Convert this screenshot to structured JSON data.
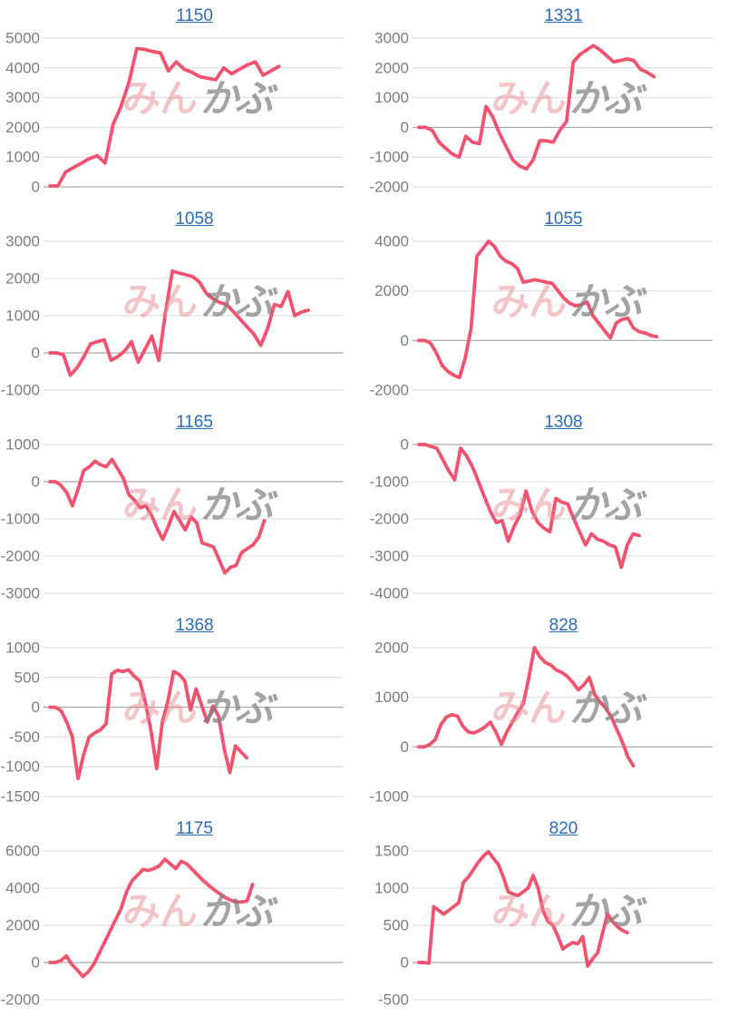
{
  "styles": {
    "line_color": "#f2526e",
    "grid_color": "#dadada",
    "baseline_color": "#9a9a9a",
    "tick_label_color": "#7d7d7d",
    "title_color": "#2a6cbf",
    "watermark_pink": "rgba(231,139,148,0.50)",
    "watermark_gray": "rgba(128,128,128,0.72)",
    "background": "#ffffff"
  },
  "watermark": {
    "pink_text": "みん",
    "gray_text": "かぶ"
  },
  "chart_data": [
    {
      "type": "line",
      "title": "1150",
      "xlabel": "",
      "ylabel": "",
      "ylim": [
        0,
        5000
      ],
      "yticks": [
        0,
        1000,
        2000,
        3000,
        4000,
        5000
      ],
      "grid": true,
      "legend": "none",
      "x_end_fraction": 0.78,
      "values": [
        30,
        30,
        500,
        650,
        800,
        950,
        1050,
        800,
        2100,
        2700,
        3500,
        4650,
        4620,
        4550,
        4500,
        3900,
        4200,
        3950,
        3850,
        3700,
        3650,
        3600,
        4000,
        3800,
        3950,
        4100,
        4200,
        3750,
        3900,
        4050
      ]
    },
    {
      "type": "line",
      "title": "1331",
      "xlabel": "",
      "ylabel": "",
      "ylim": [
        -2000,
        3000
      ],
      "yticks": [
        -2000,
        -1000,
        0,
        1000,
        2000,
        3000
      ],
      "grid": true,
      "legend": "none",
      "x_end_fraction": 0.8,
      "values": [
        0,
        0,
        -100,
        -500,
        -700,
        -900,
        -1000,
        -300,
        -500,
        -550,
        700,
        350,
        -200,
        -650,
        -1100,
        -1300,
        -1400,
        -1100,
        -450,
        -450,
        -500,
        -100,
        200,
        2200,
        2450,
        2600,
        2750,
        2600,
        2400,
        2200,
        2250,
        2300,
        2250,
        1950,
        1850,
        1700
      ]
    },
    {
      "type": "line",
      "title": "1058",
      "xlabel": "",
      "ylabel": "",
      "ylim": [
        -1000,
        3000
      ],
      "yticks": [
        -1000,
        0,
        1000,
        2000,
        3000
      ],
      "grid": true,
      "legend": "none",
      "x_end_fraction": 0.88,
      "values": [
        0,
        0,
        -50,
        -600,
        -400,
        -100,
        250,
        300,
        350,
        -200,
        -100,
        50,
        300,
        -250,
        100,
        450,
        -200,
        1100,
        2200,
        2150,
        2100,
        2050,
        1900,
        1600,
        1450,
        1350,
        1300,
        1100,
        900,
        700,
        500,
        200,
        650,
        1300,
        1250,
        1650,
        1000,
        1100,
        1150
      ]
    },
    {
      "type": "line",
      "title": "1055",
      "xlabel": "",
      "ylabel": "",
      "ylim": [
        -2000,
        4000
      ],
      "yticks": [
        -2000,
        0,
        2000,
        4000
      ],
      "grid": true,
      "legend": "none",
      "x_end_fraction": 0.81,
      "values": [
        0,
        0,
        -100,
        -500,
        -1000,
        -1250,
        -1400,
        -1500,
        -700,
        500,
        3400,
        3700,
        4000,
        3800,
        3400,
        3200,
        3100,
        2900,
        2350,
        2400,
        2450,
        2400,
        2350,
        2300,
        2000,
        1700,
        1500,
        1400,
        1450,
        1550,
        1000,
        700,
        400,
        100,
        700,
        850,
        900,
        500,
        350,
        300,
        200,
        150
      ]
    },
    {
      "type": "line",
      "title": "1165",
      "xlabel": "",
      "ylabel": "",
      "ylim": [
        -3000,
        1000
      ],
      "yticks": [
        -3000,
        -2000,
        -1000,
        0,
        1000
      ],
      "grid": true,
      "legend": "none",
      "x_end_fraction": 0.73,
      "values": [
        0,
        0,
        -100,
        -300,
        -650,
        -200,
        300,
        400,
        550,
        450,
        400,
        600,
        350,
        100,
        -350,
        -500,
        -700,
        -650,
        -900,
        -1250,
        -1550,
        -1200,
        -800,
        -1050,
        -1300,
        -950,
        -1100,
        -1650,
        -1700,
        -1750,
        -2100,
        -2450,
        -2300,
        -2250,
        -1900,
        -1800,
        -1700,
        -1500,
        -1050
      ]
    },
    {
      "type": "line",
      "title": "1308",
      "xlabel": "",
      "ylabel": "",
      "ylim": [
        -4000,
        0
      ],
      "yticks": [
        -4000,
        -3000,
        -2000,
        -1000,
        0
      ],
      "grid": true,
      "legend": "none",
      "x_end_fraction": 0.75,
      "values": [
        0,
        0,
        -50,
        -100,
        -400,
        -700,
        -950,
        -100,
        -300,
        -600,
        -1000,
        -1400,
        -1800,
        -2100,
        -2050,
        -2600,
        -2200,
        -1900,
        -1250,
        -1800,
        -2100,
        -2250,
        -2350,
        -1450,
        -1550,
        -1600,
        -2000,
        -2350,
        -2700,
        -2400,
        -2550,
        -2600,
        -2700,
        -2750,
        -3300,
        -2700,
        -2400,
        -2450
      ]
    },
    {
      "type": "line",
      "title": "1368",
      "xlabel": "",
      "ylabel": "",
      "ylim": [
        -1500,
        1000
      ],
      "yticks": [
        -1500,
        -1000,
        -500,
        0,
        500,
        1000
      ],
      "grid": true,
      "legend": "none",
      "x_end_fraction": 0.67,
      "values": [
        0,
        0,
        -60,
        -250,
        -500,
        -1200,
        -800,
        -500,
        -430,
        -380,
        -280,
        560,
        620,
        600,
        630,
        520,
        440,
        80,
        -400,
        -1030,
        -250,
        100,
        600,
        550,
        440,
        -50,
        310,
        30,
        -250,
        20,
        -150,
        -700,
        -1100,
        -650,
        -750,
        -850
      ]
    },
    {
      "type": "line",
      "title": "828",
      "xlabel": "",
      "ylabel": "",
      "ylim": [
        -1000,
        2000
      ],
      "yticks": [
        -1000,
        0,
        1000,
        2000
      ],
      "grid": true,
      "legend": "none",
      "x_end_fraction": 0.73,
      "values": [
        0,
        0,
        50,
        150,
        450,
        600,
        650,
        620,
        420,
        300,
        280,
        330,
        400,
        500,
        300,
        50,
        300,
        500,
        700,
        870,
        1400,
        2000,
        1820,
        1700,
        1650,
        1550,
        1500,
        1420,
        1300,
        1150,
        1250,
        1400,
        1050,
        900,
        780,
        600,
        350,
        100,
        -200,
        -380
      ]
    },
    {
      "type": "line",
      "title": "1175",
      "xlabel": "",
      "ylabel": "",
      "ylim": [
        -2000,
        6000
      ],
      "yticks": [
        -2000,
        0,
        2000,
        4000,
        6000
      ],
      "grid": true,
      "legend": "none",
      "x_end_fraction": 0.69,
      "values": [
        0,
        0,
        100,
        350,
        -100,
        -400,
        -750,
        -500,
        -100,
        500,
        1100,
        1700,
        2300,
        2900,
        3800,
        4400,
        4700,
        5000,
        4950,
        5050,
        5200,
        5550,
        5300,
        5050,
        5450,
        5300,
        5000,
        4700,
        4400,
        4150,
        3900,
        3700,
        3500,
        3350,
        3250,
        3250,
        3300,
        4200
      ]
    },
    {
      "type": "line",
      "title": "820",
      "xlabel": "",
      "ylabel": "",
      "ylim": [
        -500,
        1500
      ],
      "yticks": [
        -500,
        0,
        500,
        1000,
        1500
      ],
      "grid": true,
      "legend": "none",
      "x_end_fraction": 0.71,
      "values": [
        0,
        0,
        -10,
        750,
        700,
        650,
        700,
        750,
        800,
        1080,
        1150,
        1250,
        1350,
        1430,
        1490,
        1400,
        1320,
        1150,
        950,
        920,
        900,
        950,
        1000,
        1170,
        1000,
        700,
        550,
        500,
        350,
        180,
        230,
        270,
        250,
        350,
        -50,
        50,
        130,
        400,
        650,
        550,
        480,
        430,
        400
      ]
    }
  ]
}
